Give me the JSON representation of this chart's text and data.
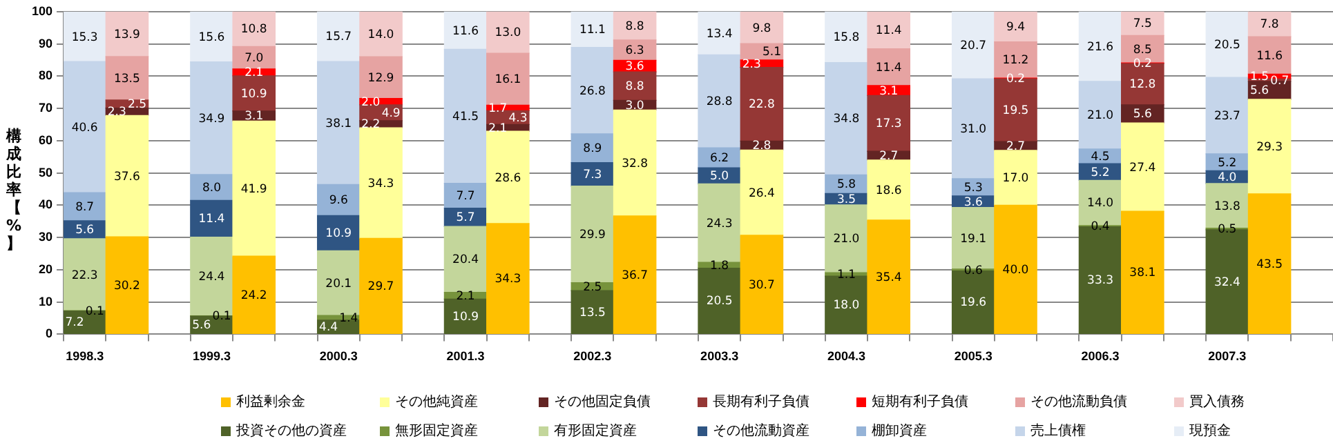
{
  "chart_data": {
    "type": "bar",
    "stacked": true,
    "ylabel": "構成比率【%】",
    "ylim": [
      0,
      100
    ],
    "yticks": [
      0,
      10,
      20,
      30,
      40,
      50,
      60,
      70,
      80,
      90,
      100
    ],
    "grid": "y",
    "legend": "bottom",
    "categories": [
      "1998.3",
      null,
      null,
      "1999.3",
      null,
      null,
      "2000.3",
      null,
      null,
      "2001.3",
      null,
      null,
      "2002.3",
      null,
      null,
      "2003.3",
      null,
      null,
      "2004.3",
      null,
      null,
      "2005.3",
      null,
      null,
      "2006.3",
      null,
      null,
      "2007.3",
      null,
      null
    ],
    "series": [
      {
        "name": "利益剰余金",
        "color": "#ffc000",
        "values": [
          null,
          30.2,
          null,
          null,
          24.2,
          null,
          null,
          29.7,
          null,
          null,
          34.3,
          null,
          null,
          36.7,
          null,
          null,
          30.7,
          null,
          null,
          35.4,
          null,
          null,
          40.0,
          null,
          null,
          38.1,
          null,
          null,
          43.5,
          null
        ],
        "value_labels": [
          null,
          "30.2",
          null,
          null,
          "24.2",
          null,
          null,
          "29.7",
          null,
          null,
          "34.3",
          null,
          null,
          "36.7",
          null,
          null,
          "30.7",
          null,
          null,
          "35.4",
          null,
          null,
          "40.0",
          null,
          null,
          "38.1",
          null,
          null,
          "43.5",
          null
        ]
      },
      {
        "name": "その他純資産",
        "color": "#ffff99",
        "values": [
          null,
          37.6,
          null,
          null,
          41.9,
          null,
          null,
          34.3,
          null,
          null,
          28.6,
          null,
          null,
          32.8,
          null,
          null,
          26.4,
          null,
          null,
          18.6,
          null,
          null,
          17.0,
          null,
          null,
          27.4,
          null,
          null,
          29.3,
          null
        ],
        "value_labels": [
          null,
          "37.6",
          null,
          null,
          "41.9",
          null,
          null,
          "34.3",
          null,
          null,
          "28.6",
          null,
          null,
          "32.8",
          null,
          null,
          "26.4",
          null,
          null,
          "18.6",
          null,
          null,
          "17.0",
          null,
          null,
          "27.4",
          null,
          null,
          "29.3",
          null
        ]
      },
      {
        "name": "その他固定負債",
        "color": "#632423",
        "values": [
          null,
          2.3,
          null,
          null,
          3.1,
          null,
          null,
          2.2,
          null,
          null,
          2.1,
          null,
          null,
          3.0,
          null,
          null,
          2.8,
          null,
          null,
          2.7,
          null,
          null,
          2.7,
          null,
          null,
          5.6,
          null,
          null,
          5.6,
          null
        ],
        "value_labels": [
          null,
          "2.3",
          null,
          null,
          "3.1",
          null,
          null,
          "2.2",
          null,
          null,
          "2.1",
          null,
          null,
          "3.0",
          null,
          null,
          "2.8",
          null,
          null,
          "2.7",
          null,
          null,
          "2.7",
          null,
          null,
          "5.6",
          null,
          null,
          "5.6",
          null
        ]
      },
      {
        "name": "長期有利子負債",
        "color": "#953735",
        "values": [
          null,
          2.5,
          null,
          null,
          10.9,
          null,
          null,
          4.9,
          null,
          null,
          4.3,
          null,
          null,
          8.8,
          null,
          null,
          22.8,
          null,
          null,
          17.3,
          null,
          null,
          19.5,
          null,
          null,
          12.8,
          null,
          null,
          0.7,
          null
        ],
        "value_labels": [
          null,
          "2.5",
          null,
          null,
          "10.9",
          null,
          null,
          "4.9",
          null,
          null,
          "4.3",
          null,
          null,
          "8.8",
          null,
          null,
          "22.8",
          null,
          null,
          "17.3",
          null,
          null,
          "19.5",
          null,
          null,
          "12.8",
          null,
          null,
          "0.7",
          null
        ]
      },
      {
        "name": "短期有利子負債",
        "color": "#ff0000",
        "values": [
          null,
          null,
          null,
          null,
          2.1,
          null,
          null,
          2.0,
          null,
          null,
          1.7,
          null,
          null,
          3.6,
          null,
          null,
          2.3,
          null,
          null,
          3.1,
          null,
          null,
          0.2,
          null,
          null,
          0.2,
          null,
          null,
          1.5,
          null
        ],
        "value_labels": [
          null,
          null,
          null,
          null,
          "2.1",
          null,
          null,
          "2.0",
          null,
          null,
          "1.7",
          null,
          null,
          "3.6",
          null,
          null,
          "2.3",
          null,
          null,
          "3.1",
          null,
          null,
          "0.2",
          null,
          null,
          "0.2",
          null,
          null,
          "1.5",
          null
        ]
      },
      {
        "name": "その他流動負債",
        "color": "#e6a3a2",
        "values": [
          null,
          13.5,
          null,
          null,
          7.0,
          null,
          null,
          12.9,
          null,
          null,
          16.1,
          null,
          null,
          6.3,
          null,
          null,
          5.1,
          null,
          null,
          11.4,
          null,
          null,
          11.2,
          null,
          null,
          8.5,
          null,
          null,
          11.6,
          null
        ],
        "value_labels": [
          null,
          "13.5",
          null,
          null,
          "7.0",
          null,
          null,
          "12.9",
          null,
          null,
          "16.1",
          null,
          null,
          "6.3",
          null,
          null,
          "5.1",
          null,
          null,
          "11.4",
          null,
          null,
          "11.2",
          null,
          null,
          "8.5",
          null,
          null,
          "11.6",
          null
        ]
      },
      {
        "name": "買入債務",
        "color": "#f2caca",
        "values": [
          null,
          13.9,
          null,
          null,
          10.8,
          null,
          null,
          14.0,
          null,
          null,
          13.0,
          null,
          null,
          8.8,
          null,
          null,
          9.8,
          null,
          null,
          11.4,
          null,
          null,
          9.4,
          null,
          null,
          7.5,
          null,
          null,
          7.8,
          null
        ],
        "value_labels": [
          null,
          "13.9",
          null,
          null,
          "10.8",
          null,
          null,
          "14.0",
          null,
          null,
          "13.0",
          null,
          null,
          "8.8",
          null,
          null,
          "9.8",
          null,
          null,
          "11.4",
          null,
          null,
          "9.4",
          null,
          null,
          "7.5",
          null,
          null,
          "7.8",
          null
        ]
      },
      {
        "name": "投資その他の資産",
        "color": "#4f6228",
        "values": [
          7.2,
          null,
          null,
          5.6,
          null,
          null,
          4.4,
          null,
          null,
          10.9,
          null,
          null,
          13.5,
          null,
          null,
          20.5,
          null,
          null,
          18.0,
          null,
          null,
          19.6,
          null,
          null,
          33.3,
          null,
          null,
          32.4,
          null,
          null
        ],
        "value_labels": [
          "7.2",
          null,
          null,
          "5.6",
          null,
          null,
          "4.4",
          null,
          null,
          "10.9",
          null,
          null,
          "13.5",
          null,
          null,
          "20.5",
          null,
          null,
          "18.0",
          null,
          null,
          "19.6",
          null,
          null,
          "33.3",
          null,
          null,
          "32.4",
          null,
          null
        ]
      },
      {
        "name": "無形固定資産",
        "color": "#77933c",
        "values": [
          0.1,
          null,
          null,
          0.1,
          null,
          null,
          1.4,
          null,
          null,
          2.1,
          null,
          null,
          2.5,
          null,
          null,
          1.8,
          null,
          null,
          1.1,
          null,
          null,
          0.6,
          null,
          null,
          0.4,
          null,
          null,
          0.5,
          null,
          null
        ],
        "value_labels": [
          "0.1",
          null,
          null,
          "0.1",
          null,
          null,
          "1.4",
          null,
          null,
          "2.1",
          null,
          null,
          "2.5",
          null,
          null,
          "1.8",
          null,
          null,
          "1.1",
          null,
          null,
          "0.6",
          null,
          null,
          "0.4",
          null,
          null,
          "0.5",
          null,
          null
        ]
      },
      {
        "name": "有形固定資産",
        "color": "#c3d69b",
        "values": [
          22.3,
          null,
          null,
          24.4,
          null,
          null,
          20.1,
          null,
          null,
          20.4,
          null,
          null,
          29.9,
          null,
          null,
          24.3,
          null,
          null,
          21.0,
          null,
          null,
          19.1,
          null,
          null,
          14.0,
          null,
          null,
          13.8,
          null,
          null
        ],
        "value_labels": [
          "22.3",
          null,
          null,
          "24.4",
          null,
          null,
          "20.1",
          null,
          null,
          "20.4",
          null,
          null,
          "29.9",
          null,
          null,
          "24.3",
          null,
          null,
          "21.0",
          null,
          null,
          "19.1",
          null,
          null,
          "14.0",
          null,
          null,
          "13.8",
          null,
          null
        ]
      },
      {
        "name": "その他流動資産",
        "color": "#2f5583",
        "values": [
          5.6,
          null,
          null,
          11.4,
          null,
          null,
          10.9,
          null,
          null,
          5.7,
          null,
          null,
          7.3,
          null,
          null,
          5.0,
          null,
          null,
          3.5,
          null,
          null,
          3.6,
          null,
          null,
          5.2,
          null,
          null,
          4.0,
          null,
          null
        ],
        "value_labels": [
          "5.6",
          null,
          null,
          "11.4",
          null,
          null,
          "10.9",
          null,
          null,
          "5.7",
          null,
          null,
          "7.3",
          null,
          null,
          "5.0",
          null,
          null,
          "3.5",
          null,
          null,
          "3.6",
          null,
          null,
          "5.2",
          null,
          null,
          "4.0",
          null,
          null
        ]
      },
      {
        "name": "棚卸資産",
        "color": "#95b3d7",
        "values": [
          8.7,
          null,
          null,
          8.0,
          null,
          null,
          9.6,
          null,
          null,
          7.7,
          null,
          null,
          8.9,
          null,
          null,
          6.2,
          null,
          null,
          5.8,
          null,
          null,
          5.3,
          null,
          null,
          4.5,
          null,
          null,
          5.2,
          null,
          null
        ],
        "value_labels": [
          "8.7",
          null,
          null,
          "8.0",
          null,
          null,
          "9.6",
          null,
          null,
          "7.7",
          null,
          null,
          "8.9",
          null,
          null,
          "6.2",
          null,
          null,
          "5.8",
          null,
          null,
          "5.3",
          null,
          null,
          "4.5",
          null,
          null,
          "5.2",
          null,
          null
        ]
      },
      {
        "name": "売上債権",
        "color": "#c5d5ea",
        "values": [
          40.6,
          null,
          null,
          34.9,
          null,
          null,
          38.1,
          null,
          null,
          41.5,
          null,
          null,
          26.8,
          null,
          null,
          28.8,
          null,
          null,
          34.8,
          null,
          null,
          31.0,
          null,
          null,
          21.0,
          null,
          null,
          23.7,
          null,
          null
        ],
        "value_labels": [
          "40.6",
          null,
          null,
          "34.9",
          null,
          null,
          "38.1",
          null,
          null,
          "41.5",
          null,
          null,
          "26.8",
          null,
          null,
          "28.8",
          null,
          null,
          "34.8",
          null,
          null,
          "31.0",
          null,
          null,
          "21.0",
          null,
          null,
          "23.7",
          null,
          null
        ]
      },
      {
        "name": "現預金",
        "color": "#e6edf6",
        "values": [
          15.3,
          null,
          null,
          15.6,
          null,
          null,
          15.7,
          null,
          null,
          11.6,
          null,
          null,
          11.1,
          null,
          null,
          13.4,
          null,
          null,
          15.8,
          null,
          null,
          20.7,
          null,
          null,
          21.6,
          null,
          null,
          20.5,
          null,
          null
        ],
        "value_labels": [
          "15.3",
          null,
          null,
          "15.6",
          null,
          null,
          "15.7",
          null,
          null,
          "11.6",
          null,
          null,
          "11.1",
          null,
          null,
          "13.4",
          null,
          null,
          "15.8",
          null,
          null,
          "20.7",
          null,
          null,
          "21.6",
          null,
          null,
          "20.5",
          null,
          null
        ]
      }
    ]
  }
}
